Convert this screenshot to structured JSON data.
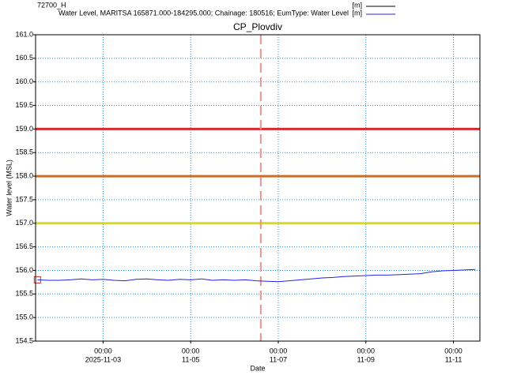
{
  "chart_data": {
    "type": "line",
    "title": "CP_Plovdiv",
    "y_label": "Water level (MSL)",
    "x_label": "Date",
    "xlim": [
      "2025-11-01T11:00",
      "2025-11-11T14:30"
    ],
    "xticks": [
      {
        "value": "2025-11-03T00:00",
        "label": [
          "00:00",
          "2025-11-03"
        ]
      },
      {
        "value": "2025-11-05T00:00",
        "label": [
          "00:00",
          "11-05"
        ]
      },
      {
        "value": "2025-11-07T00:00",
        "label": [
          "00:00",
          "11-07"
        ]
      },
      {
        "value": "2025-11-09T00:00",
        "label": [
          "00:00",
          "11-09"
        ]
      },
      {
        "value": "2025-11-11T00:00",
        "label": [
          "00:00",
          "11-11"
        ]
      }
    ],
    "ylim": [
      154.5,
      161
    ],
    "yticks": [
      154.5,
      {
        "value": 155,
        "label": "155.0"
      },
      155.5,
      {
        "value": 156,
        "label": "156.0"
      },
      156.5,
      {
        "value": 157,
        "label": "157.0"
      },
      157.5,
      {
        "value": 158,
        "label": "158.0"
      },
      158.5,
      {
        "value": 159,
        "label": "159.0"
      },
      159.5,
      {
        "value": 160,
        "label": "160.0"
      },
      160.5,
      {
        "value": 161,
        "label": "161.0"
      }
    ],
    "grid": true,
    "grid_color": "#1f8fd6",
    "thresholds": [
      {
        "value": 159,
        "color": "#d62a33"
      },
      {
        "value": 158,
        "color": "#c8702a"
      },
      {
        "value": 157,
        "color": "#dada1a"
      }
    ],
    "now_line": {
      "x": "2025-11-06T14:24",
      "color": "#ec8f8f"
    },
    "series": [
      {
        "name": "72700_H",
        "unit": "[m]",
        "color": "#000000",
        "marker_color": "#e0282e",
        "x": [
          "2025-11-01T12:00"
        ],
        "values": [
          155.8
        ]
      },
      {
        "name": "Water Level, MARITSA 165871.000-184295.000; Chainage: 180516; EumType: Water Level",
        "unit": "[m]",
        "color": "#2323e0",
        "x": [
          "2025-11-01T12:00",
          "2025-11-01T18:00",
          "2025-11-02T00:00",
          "2025-11-02T06:00",
          "2025-11-02T12:00",
          "2025-11-02T18:00",
          "2025-11-03T00:00",
          "2025-11-03T06:00",
          "2025-11-03T12:00",
          "2025-11-03T18:00",
          "2025-11-04T00:00",
          "2025-11-04T06:00",
          "2025-11-04T12:00",
          "2025-11-04T18:00",
          "2025-11-05T00:00",
          "2025-11-05T06:00",
          "2025-11-05T12:00",
          "2025-11-05T18:00",
          "2025-11-06T00:00",
          "2025-11-06T06:00",
          "2025-11-06T12:00",
          "2025-11-06T18:00",
          "2025-11-07T00:00",
          "2025-11-07T06:00",
          "2025-11-07T12:00",
          "2025-11-07T18:00",
          "2025-11-08T00:00",
          "2025-11-08T06:00",
          "2025-11-08T12:00",
          "2025-11-08T18:00",
          "2025-11-09T00:00",
          "2025-11-09T06:00",
          "2025-11-09T12:00",
          "2025-11-09T18:00",
          "2025-11-10T00:00",
          "2025-11-10T06:00",
          "2025-11-10T12:00",
          "2025-11-10T18:00",
          "2025-11-11T00:00",
          "2025-11-11T06:00",
          "2025-11-11T12:00"
        ],
        "values": [
          155.8,
          155.79,
          155.79,
          155.8,
          155.82,
          155.8,
          155.81,
          155.79,
          155.78,
          155.81,
          155.82,
          155.8,
          155.79,
          155.81,
          155.8,
          155.82,
          155.79,
          155.8,
          155.79,
          155.8,
          155.78,
          155.77,
          155.76,
          155.78,
          155.8,
          155.82,
          155.84,
          155.85,
          155.87,
          155.88,
          155.89,
          155.9,
          155.9,
          155.91,
          155.92,
          155.93,
          155.97,
          155.99,
          156,
          156.01,
          156.02
        ]
      }
    ]
  }
}
